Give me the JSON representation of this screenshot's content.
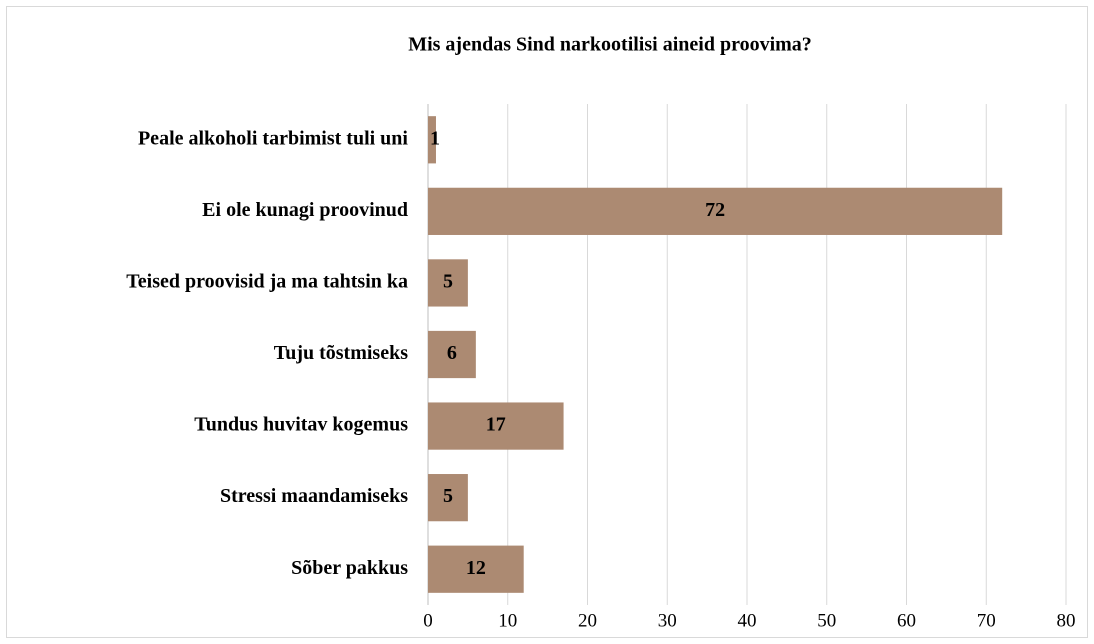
{
  "chart_data": {
    "type": "bar",
    "orientation": "horizontal",
    "title": "Mis ajendas Sind narkootilisi aineid proovima?",
    "categories": [
      "Peale alkoholi tarbimist tuli uni",
      "Ei ole kunagi proovinud",
      "Teised proovisid ja ma tahtsin ka",
      "Tuju tõstmiseks",
      "Tundus huvitav kogemus",
      "Stressi maandamiseks",
      "Sõber pakkus"
    ],
    "values": [
      1,
      72,
      5,
      6,
      17,
      5,
      12
    ],
    "color": "#ac8a72",
    "xlim": [
      0,
      80
    ],
    "xticks": [
      0,
      10,
      20,
      30,
      40,
      50,
      60,
      70,
      80
    ],
    "grid": true
  }
}
